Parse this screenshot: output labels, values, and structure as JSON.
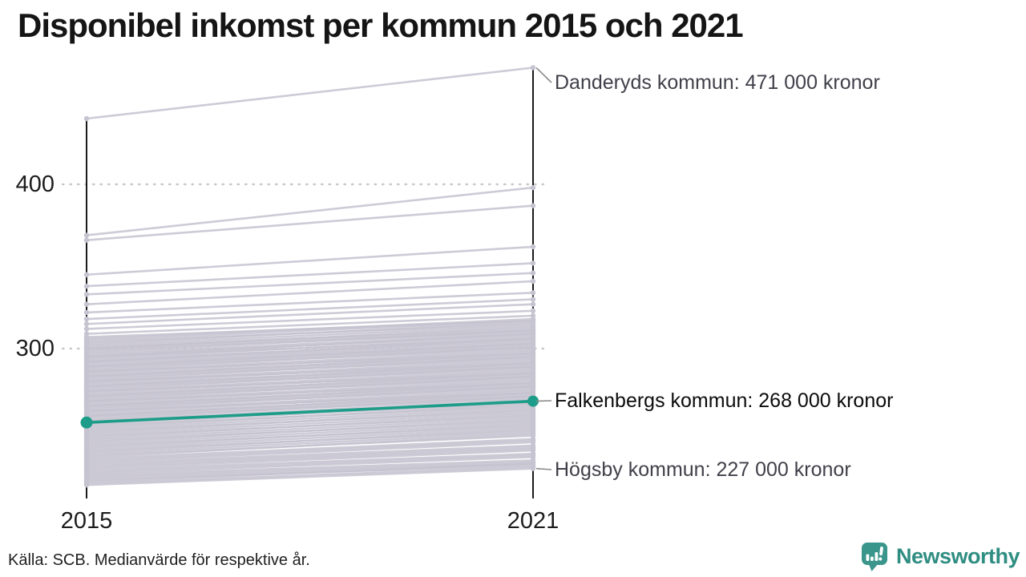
{
  "title": "Disponibel inkomst per kommun 2015 och 2021",
  "source": "Källa: SCB. Medianvärde för respektive år.",
  "logo": {
    "text": "Newsworthy",
    "icon_color": "#3a958b",
    "text_color": "#2f8d82"
  },
  "colors": {
    "background_line": "#c7c4d1",
    "highlight": "#1d9d89",
    "axis": "#1a1a1a",
    "gridline": "#c9c9c9",
    "connector": "#8a8a8a"
  },
  "chart_data": {
    "type": "line",
    "variant": "slope",
    "title": "Disponibel inkomst per kommun 2015 och 2021",
    "x_labels": [
      "2015",
      "2021"
    ],
    "yticks": [
      {
        "value": 400,
        "label": "400"
      },
      {
        "value": 300,
        "label": "300"
      }
    ],
    "ylim": [
      210,
      480
    ],
    "grid": "dotted-horizontal",
    "legend": "none",
    "highlight": {
      "name": "Falkenbergs kommun",
      "values": [
        255,
        268
      ],
      "color": "#1d9d89"
    },
    "labeled": [
      {
        "name": "Danderyds kommun",
        "values": [
          440,
          471
        ],
        "annotation": "Danderyds kommun: 471 000 kronor"
      },
      {
        "name": "Falkenbergs kommun",
        "values": [
          255,
          268
        ],
        "annotation": "Falkenbergs kommun: 268 000 kronor"
      },
      {
        "name": "Högsby kommun",
        "values": [
          217,
          227
        ],
        "annotation": "Högsby kommun: 227 000 kronor"
      }
    ],
    "background_lines": [
      [
        440,
        471
      ],
      [
        369,
        398
      ],
      [
        366,
        387
      ],
      [
        345,
        362
      ],
      [
        338,
        352
      ],
      [
        333,
        346
      ],
      [
        327,
        341
      ],
      [
        322,
        334
      ],
      [
        318,
        330
      ],
      [
        315,
        327
      ],
      [
        312,
        323
      ],
      [
        309,
        320
      ],
      [
        307,
        317
      ],
      [
        306,
        318
      ],
      [
        305,
        317
      ],
      [
        304,
        315
      ],
      [
        303,
        316
      ],
      [
        302,
        314
      ],
      [
        301,
        312
      ],
      [
        300,
        313
      ],
      [
        300,
        311
      ],
      [
        299,
        310
      ],
      [
        298,
        311
      ],
      [
        297,
        309
      ],
      [
        296,
        308
      ],
      [
        295,
        309
      ],
      [
        295,
        306
      ],
      [
        294,
        307
      ],
      [
        293,
        305
      ],
      [
        292,
        304
      ],
      [
        292,
        306
      ],
      [
        291,
        303
      ],
      [
        290,
        302
      ],
      [
        289,
        303
      ],
      [
        289,
        301
      ],
      [
        288,
        300
      ],
      [
        287,
        301
      ],
      [
        286,
        299
      ],
      [
        286,
        297
      ],
      [
        285,
        298
      ],
      [
        284,
        296
      ],
      [
        283,
        297
      ],
      [
        283,
        295
      ],
      [
        282,
        294
      ],
      [
        281,
        295
      ],
      [
        280,
        293
      ],
      [
        280,
        291
      ],
      [
        279,
        292
      ],
      [
        278,
        290
      ],
      [
        277,
        291
      ],
      [
        277,
        289
      ],
      [
        276,
        288
      ],
      [
        275,
        289
      ],
      [
        274,
        287
      ],
      [
        274,
        285
      ],
      [
        273,
        286
      ],
      [
        272,
        284
      ],
      [
        271,
        285
      ],
      [
        271,
        283
      ],
      [
        270,
        282
      ],
      [
        269,
        283
      ],
      [
        268,
        281
      ],
      [
        268,
        279
      ],
      [
        267,
        280
      ],
      [
        266,
        278
      ],
      [
        265,
        279
      ],
      [
        265,
        277
      ],
      [
        264,
        276
      ],
      [
        263,
        277
      ],
      [
        262,
        275
      ],
      [
        262,
        273
      ],
      [
        261,
        274
      ],
      [
        260,
        272
      ],
      [
        259,
        273
      ],
      [
        259,
        271
      ],
      [
        258,
        270
      ],
      [
        257,
        271
      ],
      [
        256,
        269
      ],
      [
        256,
        267
      ],
      [
        254,
        267
      ],
      [
        253,
        265
      ],
      [
        252,
        266
      ],
      [
        251,
        264
      ],
      [
        250,
        262
      ],
      [
        249,
        263
      ],
      [
        248,
        261
      ],
      [
        247,
        259
      ],
      [
        246,
        260
      ],
      [
        245,
        258
      ],
      [
        244,
        256
      ],
      [
        243,
        257
      ],
      [
        242,
        255
      ],
      [
        241,
        253
      ],
      [
        240,
        254
      ],
      [
        239,
        252
      ],
      [
        238,
        250
      ],
      [
        237,
        251
      ],
      [
        236,
        249
      ],
      [
        235,
        247
      ],
      [
        234,
        248
      ],
      [
        233,
        245
      ],
      [
        232,
        244
      ],
      [
        231,
        243
      ],
      [
        230,
        241
      ],
      [
        229,
        240
      ],
      [
        228,
        239
      ],
      [
        227,
        238
      ],
      [
        226,
        236
      ],
      [
        225,
        235
      ],
      [
        224,
        234
      ],
      [
        223,
        232
      ],
      [
        222,
        231
      ],
      [
        221,
        230
      ],
      [
        220,
        229
      ],
      [
        219,
        230
      ],
      [
        218,
        228
      ],
      [
        217,
        227
      ]
    ]
  }
}
